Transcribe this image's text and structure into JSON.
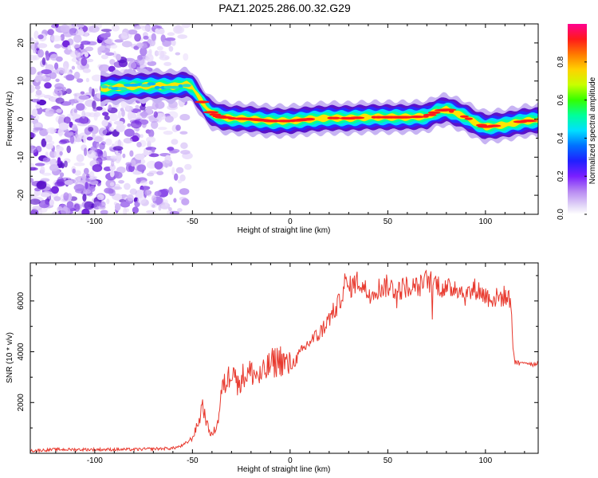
{
  "figure_title": "PAZ1.2025.286.00.32.G29",
  "colors": {
    "snr_line": "#e83a2f",
    "axis": "#000000",
    "colormap": [
      "#ffffff",
      "#d6c4f5",
      "#9b5ef0",
      "#6a1fd6",
      "#2424ff",
      "#00c8ff",
      "#00ff9a",
      "#4dff00",
      "#ffff00",
      "#ff8a00",
      "#ff1a1a",
      "#ff00a0"
    ]
  },
  "chart_data": [
    {
      "type": "heatmap",
      "title": "PAZ1.2025.286.00.32.G29",
      "xlabel": "Height of straight line (km)",
      "ylabel": "Frequency (Hz)",
      "xlim": [
        -133,
        127
      ],
      "ylim": [
        -25,
        25
      ],
      "x_ticks": [
        -100,
        -50,
        0,
        50,
        100
      ],
      "y_ticks": [
        20,
        10,
        0,
        -10,
        -20
      ],
      "colorbar": {
        "label": "Normalized spectral amplitude",
        "range": [
          0,
          1
        ],
        "ticks": [
          0.0,
          0.2,
          0.4,
          0.6,
          0.8
        ],
        "tick_labels": [
          "0.0",
          "0.2",
          "0.4",
          "0.6",
          "0.8"
        ]
      },
      "ridge": {
        "x": [
          -97,
          -90,
          -80,
          -70,
          -60,
          -57,
          -53,
          -50,
          -47,
          -43,
          -40,
          -35,
          -30,
          -20,
          -10,
          0,
          10,
          20,
          30,
          40,
          50,
          60,
          70,
          75,
          80,
          85,
          90,
          95,
          100,
          110,
          120,
          127
        ],
        "freq": [
          8,
          8.3,
          8.6,
          8.8,
          8.6,
          8.9,
          9.1,
          8.3,
          6,
          3,
          1.5,
          0.5,
          0.2,
          0,
          -0.5,
          -0.5,
          0,
          0.3,
          0.2,
          0.5,
          0.5,
          0.5,
          0.7,
          2,
          2.5,
          1.5,
          0.5,
          -1,
          -2,
          -1.5,
          -0.5,
          -0.3
        ]
      },
      "noise_region_km": [
        -133,
        -55
      ]
    },
    {
      "type": "line",
      "xlabel": "Height of straight line (km)",
      "ylabel": "SNR (10 * v/v)",
      "xlim": [
        -133,
        127
      ],
      "ylim": [
        0,
        7500
      ],
      "x_ticks": [
        -100,
        -50,
        0,
        50,
        100
      ],
      "y_ticks": [
        2000,
        4000,
        6000
      ],
      "series": [
        {
          "name": "SNR",
          "x": [
            -133,
            -120,
            -100,
            -80,
            -60,
            -55,
            -50,
            -48,
            -46,
            -45,
            -44,
            -42,
            -40,
            -37,
            -35,
            -32,
            -30,
            -29,
            -27,
            -25,
            -20,
            -15,
            -10,
            -5,
            0,
            5,
            10,
            15,
            20,
            25,
            28,
            30,
            35,
            40,
            45,
            50,
            55,
            60,
            65,
            70,
            75,
            80,
            85,
            90,
            95,
            100,
            105,
            110,
            113,
            114,
            115,
            118,
            120,
            125,
            127
          ],
          "y": [
            100,
            150,
            150,
            150,
            200,
            300,
            600,
            1000,
            1400,
            2100,
            1600,
            1000,
            700,
            1200,
            2500,
            2900,
            3300,
            3600,
            2600,
            3000,
            3200,
            3000,
            3500,
            3700,
            3400,
            3900,
            4400,
            4700,
            5300,
            5900,
            6700,
            6500,
            6800,
            6300,
            6500,
            6600,
            6400,
            6600,
            6500,
            6800,
            6700,
            6400,
            6600,
            6200,
            6500,
            6200,
            6100,
            6200,
            6000,
            4300,
            3600,
            3500,
            3600,
            3500,
            3600
          ]
        }
      ]
    }
  ]
}
